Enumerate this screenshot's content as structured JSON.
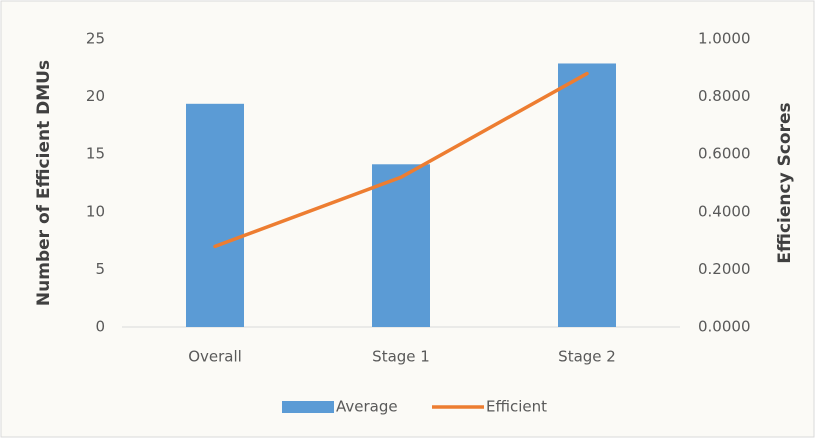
{
  "chart_data": {
    "type": "bar-line",
    "categories": [
      "Overall",
      "Stage 1",
      "Stage 2"
    ],
    "series": [
      {
        "name": "Average",
        "type": "bar",
        "axis": "y2",
        "color": "#5b9bd5",
        "values": [
          0.775,
          0.565,
          0.915
        ]
      },
      {
        "name": "Efficient",
        "type": "line",
        "axis": "y",
        "color": "#ed7d31",
        "values": [
          7,
          13,
          22
        ]
      }
    ],
    "ylabel": "Number of Efficient DMUs",
    "y2label": "Efficiency Scores",
    "ylim": [
      0,
      25
    ],
    "yticks": [
      0,
      5,
      10,
      15,
      20,
      25
    ],
    "y2lim": [
      0,
      1
    ],
    "y2ticks": [
      {
        "value": 0,
        "label": "0.0000"
      },
      {
        "value": 0.2,
        "label": "0.2000"
      },
      {
        "value": 0.4,
        "label": "0.4000"
      },
      {
        "value": 0.6,
        "label": "0.6000"
      },
      {
        "value": 0.8,
        "label": "0.8000"
      },
      {
        "value": 1,
        "label": "1.0000"
      }
    ],
    "legend": "bottom"
  }
}
